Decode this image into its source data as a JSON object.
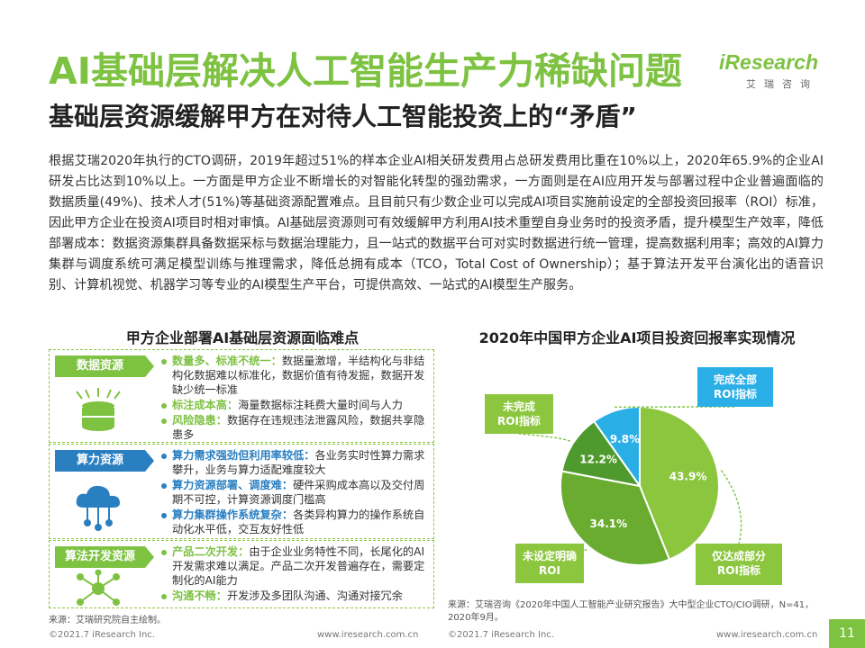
{
  "title": "AI基础层解决人工智能生产力稀缺问题",
  "subtitle": "基础层资源缓解甲方在对待人工智能投资上的“矛盾”",
  "logo": {
    "brand": "iResearch",
    "sub": "艾瑞咨询"
  },
  "body": "根据艾瑞2020年执行的CTO调研，2019年超过51%的样本企业AI相关研发费用占总研发费用比重在10%以上，2020年65.9%的企业AI研发占比达到10%以上。一方面是甲方企业不断增长的对智能化转型的强劲需求，一方面则是在AI应用开发与部署过程中企业普遍面临的数据质量(49%)、技术人才(51%)等基础资源配置难点。且目前只有少数企业可以完成AI项目实施前设定的全部投资回报率（ROI）标准，因此甲方企业在投资AI项目时相对审慎。AI基础层资源则可有效缓解甲方利用AI技术重塑自身业务时的投资矛盾，提升模型生产效率，降低部署成本：数据资源集群具备数据采标与数据治理能力，且一站式的数据平台可对实时数据进行统一管理，提高数据利用率；高效的AI算力集群与调度系统可满足模型训练与推理需求，降低总拥有成本（TCO，Total Cost of Ownership）；基于算法开发平台演化出的语音识别、计算机视觉、机器学习等专业的AI模型生产平台，可提供高效、一站式的AI模型生产服务。",
  "left_panel": {
    "title": "甲方企业部署AI基础层资源面临难点",
    "sections": [
      {
        "tag": "数据资源",
        "items": [
          {
            "hl": "数量多、标准不统一：",
            "text": "数据量激增，半结构化与非结构化数据难以标准化，数据价值有待发掘，数据开发缺少统一标准"
          },
          {
            "hl": "标注成本高：",
            "text": "海量数据标注耗费大量时间与人力"
          },
          {
            "hl": "风险隐患：",
            "text": "数据存在违规违法泄露风险，数据共享隐患多"
          }
        ]
      },
      {
        "tag": "算力资源",
        "items": [
          {
            "hl": "算力需求强劲但利用率较低：",
            "text": "各业务实时性算力需求攀升，业务与算力适配难度较大"
          },
          {
            "hl": "算力资源部署、调度难：",
            "text": "硬件采购成本高以及交付周期不可控，计算资源调度门槛高"
          },
          {
            "hl": "算力集群操作系统复杂：",
            "text": "各类异构算力的操作系统自动化水平低，交互友好性低"
          }
        ]
      },
      {
        "tag": "算法开发资源",
        "items": [
          {
            "hl": "产品二次开发：",
            "text": "由于企业业务特性不同，长尾化的AI开发需求难以满足。产品二次开发普遍存在，需要定制化的AI能力"
          },
          {
            "hl": "沟通不畅：",
            "text": "开发涉及多团队沟通、沟通对接冗余"
          }
        ]
      }
    ],
    "source": "来源：艾瑞研究院自主绘制。"
  },
  "chart_data": {
    "type": "pie",
    "title": "2020年中国甲方企业AI项目投资回报率实现情况",
    "slices": [
      {
        "label": "完成全部ROI指标",
        "value": 9.8,
        "value_label": "9.8%",
        "color": "#29aee6"
      },
      {
        "label": "仅达成部分ROI指标",
        "value": 43.9,
        "value_label": "43.9%",
        "color": "#8cc63f"
      },
      {
        "label": "未设定明确ROI",
        "value": 34.1,
        "value_label": "34.1%",
        "color": "#6aac30"
      },
      {
        "label": "未完成ROI指标",
        "value": 12.2,
        "value_label": "12.2%",
        "color": "#4f9a2e"
      }
    ],
    "source": "来源：艾瑞咨询《2020年中国人工智能产业研究报告》大中型企业CTO/CIO调研，N=41，2020年9月。"
  },
  "footer": {
    "left_copyright": "©2021.7 iResearch Inc.",
    "left_url": "www.iresearch.com.cn",
    "right_copyright": "©2021.7 iResearch Inc.",
    "right_url": "www.iresearch.com.cn",
    "page": "11"
  }
}
